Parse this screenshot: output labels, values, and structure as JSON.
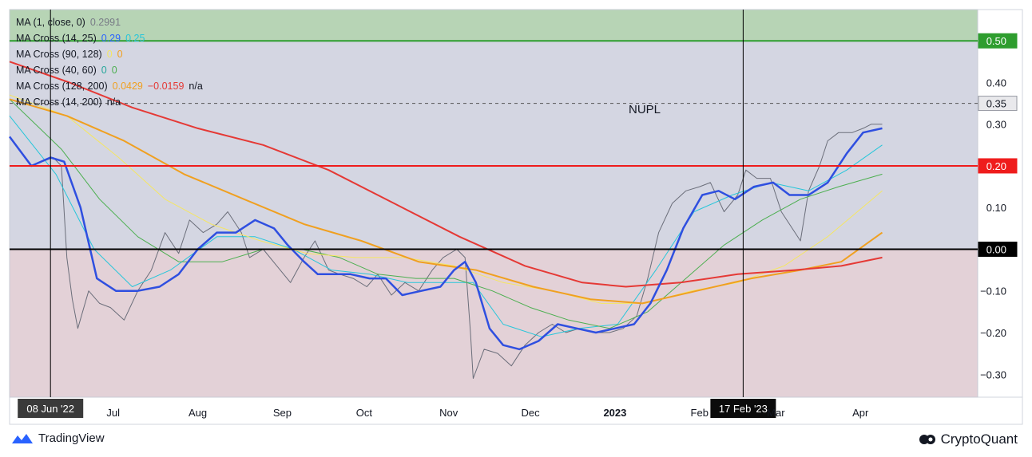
{
  "legend": [
    {
      "label": "MA (1, close, 0)",
      "values": [
        {
          "text": "0.2991",
          "color": "#787b86"
        }
      ]
    },
    {
      "label": "MA Cross (14, 25)",
      "values": [
        {
          "text": "0.29",
          "color": "#2962ff"
        },
        {
          "text": "0.25",
          "color": "#26c6da"
        }
      ]
    },
    {
      "label": "MA Cross (90, 128)",
      "values": [
        {
          "text": "0",
          "color": "#f5e663"
        },
        {
          "text": "0",
          "color": "#f0a020"
        }
      ]
    },
    {
      "label": "MA Cross (40, 60)",
      "values": [
        {
          "text": "0",
          "color": "#26a69a"
        },
        {
          "text": "0",
          "color": "#4caf50"
        }
      ]
    },
    {
      "label": "MA Cross (128, 200)",
      "values": [
        {
          "text": "0.0429",
          "color": "#f0a020"
        },
        {
          "text": "−0.0159",
          "color": "#e53935"
        },
        {
          "text": "n/a",
          "color": "#131722"
        }
      ]
    },
    {
      "label": "MA Cross (14, 200)",
      "values": [
        {
          "text": "n/a",
          "color": "#131722"
        }
      ]
    }
  ],
  "footer": {
    "left": "TradingView",
    "right": "CryptoQuant"
  },
  "chart_data": {
    "type": "line",
    "title": "NUPL",
    "x_tick_labels": [
      "Jul",
      "Aug",
      "Sep",
      "Oct",
      "Nov",
      "Dec",
      "2023",
      "Feb",
      "Mar",
      "Apr"
    ],
    "y_ticks": [
      -0.3,
      -0.2,
      -0.1,
      0.0,
      0.1,
      0.2,
      0.3,
      0.4,
      0.5
    ],
    "y_tick_labels": [
      "−0.30",
      "−0.20",
      "−0.10",
      "0.00",
      "0.10",
      "0.20",
      "0.30",
      "0.40",
      "0.50"
    ],
    "ylim": [
      -0.355,
      0.575
    ],
    "xlim": [
      "2022-05-24",
      "2023-05-14"
    ],
    "zones": [
      {
        "from": 0.5,
        "to": 0.575,
        "color": "#b7d4b5"
      },
      {
        "from": 0.0,
        "to": 0.5,
        "color": "#d4d6e2"
      },
      {
        "from": -0.355,
        "to": 0.0,
        "color": "#e3d1d7"
      }
    ],
    "levels": [
      {
        "value": 0.5,
        "label": "0.50",
        "color": "#2e9d2e",
        "style": "solid"
      },
      {
        "value": 0.35,
        "label": "0.35",
        "color": "#555555",
        "style": "dashed"
      },
      {
        "value": 0.2,
        "label": "0.20",
        "color": "#ef1c1c",
        "style": "solid"
      },
      {
        "value": 0.0,
        "label": "0.00",
        "color": "#000000",
        "style": "solid"
      }
    ],
    "crosshairs": [
      {
        "x": "2022-06-08",
        "label": "08 Jun '22"
      },
      {
        "x": "2023-02-17",
        "label": "17 Feb '23"
      }
    ],
    "series": [
      {
        "color": "#6b6e7a",
        "width": 1,
        "points": [
          [
            "2022-06-01",
            0.2
          ],
          [
            "2022-06-05",
            0.21
          ],
          [
            "2022-06-09",
            0.22
          ],
          [
            "2022-06-12",
            0.2
          ],
          [
            "2022-06-14",
            -0.02
          ],
          [
            "2022-06-16",
            -0.12
          ],
          [
            "2022-06-18",
            -0.19
          ],
          [
            "2022-06-22",
            -0.1
          ],
          [
            "2022-06-26",
            -0.13
          ],
          [
            "2022-06-30",
            -0.14
          ],
          [
            "2022-07-05",
            -0.17
          ],
          [
            "2022-07-10",
            -0.1
          ],
          [
            "2022-07-15",
            -0.05
          ],
          [
            "2022-07-20",
            0.04
          ],
          [
            "2022-07-25",
            -0.01
          ],
          [
            "2022-07-29",
            0.07
          ],
          [
            "2022-08-03",
            0.04
          ],
          [
            "2022-08-08",
            0.06
          ],
          [
            "2022-08-12",
            0.09
          ],
          [
            "2022-08-17",
            0.04
          ],
          [
            "2022-08-20",
            -0.02
          ],
          [
            "2022-08-25",
            0.0
          ],
          [
            "2022-08-30",
            -0.04
          ],
          [
            "2022-09-04",
            -0.08
          ],
          [
            "2022-09-09",
            -0.02
          ],
          [
            "2022-09-13",
            0.02
          ],
          [
            "2022-09-18",
            -0.05
          ],
          [
            "2022-09-22",
            -0.06
          ],
          [
            "2022-09-27",
            -0.07
          ],
          [
            "2022-10-02",
            -0.09
          ],
          [
            "2022-10-06",
            -0.06
          ],
          [
            "2022-10-11",
            -0.11
          ],
          [
            "2022-10-16",
            -0.08
          ],
          [
            "2022-10-21",
            -0.1
          ],
          [
            "2022-10-26",
            -0.05
          ],
          [
            "2022-10-30",
            -0.02
          ],
          [
            "2022-11-04",
            0.0
          ],
          [
            "2022-11-07",
            -0.02
          ],
          [
            "2022-11-09",
            -0.2
          ],
          [
            "2022-11-10",
            -0.31
          ],
          [
            "2022-11-14",
            -0.24
          ],
          [
            "2022-11-19",
            -0.25
          ],
          [
            "2022-11-24",
            -0.28
          ],
          [
            "2022-11-29",
            -0.23
          ],
          [
            "2022-12-04",
            -0.2
          ],
          [
            "2022-12-09",
            -0.18
          ],
          [
            "2022-12-14",
            -0.2
          ],
          [
            "2022-12-19",
            -0.19
          ],
          [
            "2022-12-25",
            -0.2
          ],
          [
            "2022-12-30",
            -0.2
          ],
          [
            "2023-01-04",
            -0.19
          ],
          [
            "2023-01-09",
            -0.16
          ],
          [
            "2023-01-13",
            -0.07
          ],
          [
            "2023-01-17",
            0.04
          ],
          [
            "2023-01-22",
            0.11
          ],
          [
            "2023-01-27",
            0.14
          ],
          [
            "2023-02-01",
            0.15
          ],
          [
            "2023-02-05",
            0.16
          ],
          [
            "2023-02-10",
            0.09
          ],
          [
            "2023-02-15",
            0.13
          ],
          [
            "2023-02-18",
            0.19
          ],
          [
            "2023-02-22",
            0.17
          ],
          [
            "2023-02-27",
            0.17
          ],
          [
            "2023-03-03",
            0.09
          ],
          [
            "2023-03-08",
            0.04
          ],
          [
            "2023-03-10",
            0.02
          ],
          [
            "2023-03-13",
            0.14
          ],
          [
            "2023-03-17",
            0.2
          ],
          [
            "2023-03-20",
            0.26
          ],
          [
            "2023-03-24",
            0.28
          ],
          [
            "2023-03-29",
            0.28
          ],
          [
            "2023-04-02",
            0.29
          ],
          [
            "2023-04-05",
            0.3
          ],
          [
            "2023-04-09",
            0.3
          ]
        ]
      },
      {
        "color": "#26c6da",
        "width": 1,
        "points": [
          [
            "2022-05-24",
            0.32
          ],
          [
            "2022-06-10",
            0.18
          ],
          [
            "2022-06-24",
            0.0
          ],
          [
            "2022-07-08",
            -0.09
          ],
          [
            "2022-07-22",
            -0.05
          ],
          [
            "2022-08-08",
            0.03
          ],
          [
            "2022-08-22",
            0.03
          ],
          [
            "2022-09-05",
            0.0
          ],
          [
            "2022-09-19",
            -0.05
          ],
          [
            "2022-10-03",
            -0.06
          ],
          [
            "2022-10-17",
            -0.08
          ],
          [
            "2022-10-31",
            -0.08
          ],
          [
            "2022-11-10",
            -0.08
          ],
          [
            "2022-11-21",
            -0.18
          ],
          [
            "2022-12-05",
            -0.21
          ],
          [
            "2022-12-19",
            -0.19
          ],
          [
            "2023-01-02",
            -0.18
          ],
          [
            "2023-01-16",
            -0.05
          ],
          [
            "2023-01-30",
            0.09
          ],
          [
            "2023-02-13",
            0.13
          ],
          [
            "2023-02-27",
            0.16
          ],
          [
            "2023-03-13",
            0.14
          ],
          [
            "2023-03-27",
            0.19
          ],
          [
            "2023-04-09",
            0.25
          ]
        ]
      },
      {
        "color": "#4caf50",
        "width": 1,
        "points": [
          [
            "2022-05-24",
            0.36
          ],
          [
            "2022-06-12",
            0.24
          ],
          [
            "2022-06-26",
            0.12
          ],
          [
            "2022-07-10",
            0.03
          ],
          [
            "2022-07-25",
            -0.03
          ],
          [
            "2022-08-10",
            -0.03
          ],
          [
            "2022-08-25",
            0.0
          ],
          [
            "2022-09-08",
            0.0
          ],
          [
            "2022-09-22",
            -0.02
          ],
          [
            "2022-10-06",
            -0.06
          ],
          [
            "2022-10-20",
            -0.07
          ],
          [
            "2022-11-03",
            -0.07
          ],
          [
            "2022-11-17",
            -0.1
          ],
          [
            "2022-12-01",
            -0.14
          ],
          [
            "2022-12-15",
            -0.17
          ],
          [
            "2022-12-30",
            -0.19
          ],
          [
            "2023-01-13",
            -0.15
          ],
          [
            "2023-01-27",
            -0.07
          ],
          [
            "2023-02-10",
            0.01
          ],
          [
            "2023-02-24",
            0.07
          ],
          [
            "2023-03-10",
            0.12
          ],
          [
            "2023-03-24",
            0.15
          ],
          [
            "2023-04-09",
            0.18
          ]
        ]
      },
      {
        "color": "#f5e663",
        "width": 1,
        "points": [
          [
            "2022-05-24",
            0.37
          ],
          [
            "2022-06-14",
            0.32
          ],
          [
            "2022-07-03",
            0.22
          ],
          [
            "2022-07-20",
            0.12
          ],
          [
            "2022-08-06",
            0.06
          ],
          [
            "2022-08-24",
            0.02
          ],
          [
            "2022-09-10",
            -0.01
          ],
          [
            "2022-09-28",
            -0.02
          ],
          [
            "2022-10-16",
            -0.02
          ],
          [
            "2022-11-03",
            -0.04
          ],
          [
            "2022-11-21",
            -0.08
          ],
          [
            "2022-12-09",
            -0.1
          ],
          [
            "2022-12-27",
            -0.13
          ],
          [
            "2023-01-12",
            -0.13
          ],
          [
            "2023-01-29",
            -0.1
          ],
          [
            "2023-02-15",
            -0.08
          ],
          [
            "2023-03-04",
            -0.04
          ],
          [
            "2023-03-20",
            0.03
          ],
          [
            "2023-04-09",
            0.14
          ]
        ]
      },
      {
        "color": "#f0a020",
        "width": 2,
        "points": [
          [
            "2022-05-24",
            0.36
          ],
          [
            "2022-06-14",
            0.32
          ],
          [
            "2022-07-05",
            0.26
          ],
          [
            "2022-07-27",
            0.18
          ],
          [
            "2022-08-18",
            0.12
          ],
          [
            "2022-09-09",
            0.06
          ],
          [
            "2022-09-30",
            0.02
          ],
          [
            "2022-10-21",
            -0.03
          ],
          [
            "2022-11-11",
            -0.05
          ],
          [
            "2022-12-02",
            -0.09
          ],
          [
            "2022-12-23",
            -0.12
          ],
          [
            "2023-01-11",
            -0.13
          ],
          [
            "2023-01-31",
            -0.1
          ],
          [
            "2023-02-20",
            -0.07
          ],
          [
            "2023-03-10",
            -0.05
          ],
          [
            "2023-03-25",
            -0.03
          ],
          [
            "2023-04-09",
            0.04
          ]
        ]
      },
      {
        "color": "#e53935",
        "width": 2,
        "points": [
          [
            "2022-05-24",
            0.45
          ],
          [
            "2022-06-15",
            0.4
          ],
          [
            "2022-07-08",
            0.34
          ],
          [
            "2022-08-01",
            0.29
          ],
          [
            "2022-08-25",
            0.25
          ],
          [
            "2022-09-18",
            0.19
          ],
          [
            "2022-10-12",
            0.11
          ],
          [
            "2022-11-05",
            0.03
          ],
          [
            "2022-11-29",
            -0.04
          ],
          [
            "2022-12-20",
            -0.08
          ],
          [
            "2023-01-05",
            -0.09
          ],
          [
            "2023-01-25",
            -0.08
          ],
          [
            "2023-02-15",
            -0.06
          ],
          [
            "2023-03-08",
            -0.05
          ],
          [
            "2023-03-25",
            -0.04
          ],
          [
            "2023-04-09",
            -0.02
          ]
        ]
      },
      {
        "color": "#2f4fe0",
        "width": 2.5,
        "points": [
          [
            "2022-05-24",
            0.27
          ],
          [
            "2022-06-01",
            0.2
          ],
          [
            "2022-06-08",
            0.22
          ],
          [
            "2022-06-13",
            0.21
          ],
          [
            "2022-06-19",
            0.1
          ],
          [
            "2022-06-25",
            -0.07
          ],
          [
            "2022-07-02",
            -0.1
          ],
          [
            "2022-07-10",
            -0.1
          ],
          [
            "2022-07-18",
            -0.09
          ],
          [
            "2022-07-25",
            -0.06
          ],
          [
            "2022-08-01",
            0.0
          ],
          [
            "2022-08-08",
            0.04
          ],
          [
            "2022-08-15",
            0.04
          ],
          [
            "2022-08-22",
            0.07
          ],
          [
            "2022-08-29",
            0.05
          ],
          [
            "2022-09-03",
            0.01
          ],
          [
            "2022-09-09",
            -0.03
          ],
          [
            "2022-09-14",
            -0.06
          ],
          [
            "2022-09-20",
            -0.06
          ],
          [
            "2022-09-26",
            -0.06
          ],
          [
            "2022-10-03",
            -0.07
          ],
          [
            "2022-10-09",
            -0.07
          ],
          [
            "2022-10-15",
            -0.11
          ],
          [
            "2022-10-22",
            -0.1
          ],
          [
            "2022-10-29",
            -0.09
          ],
          [
            "2022-11-03",
            -0.05
          ],
          [
            "2022-11-07",
            -0.03
          ],
          [
            "2022-11-11",
            -0.08
          ],
          [
            "2022-11-16",
            -0.19
          ],
          [
            "2022-11-21",
            -0.23
          ],
          [
            "2022-11-27",
            -0.24
          ],
          [
            "2022-12-04",
            -0.22
          ],
          [
            "2022-12-11",
            -0.18
          ],
          [
            "2022-12-18",
            -0.19
          ],
          [
            "2022-12-25",
            -0.2
          ],
          [
            "2023-01-01",
            -0.19
          ],
          [
            "2023-01-08",
            -0.18
          ],
          [
            "2023-01-14",
            -0.13
          ],
          [
            "2023-01-20",
            -0.05
          ],
          [
            "2023-01-26",
            0.05
          ],
          [
            "2023-02-02",
            0.13
          ],
          [
            "2023-02-08",
            0.14
          ],
          [
            "2023-02-14",
            0.12
          ],
          [
            "2023-02-21",
            0.15
          ],
          [
            "2023-02-28",
            0.16
          ],
          [
            "2023-03-06",
            0.13
          ],
          [
            "2023-03-13",
            0.13
          ],
          [
            "2023-03-20",
            0.16
          ],
          [
            "2023-03-27",
            0.23
          ],
          [
            "2023-04-02",
            0.28
          ],
          [
            "2023-04-09",
            0.29
          ]
        ]
      }
    ]
  }
}
